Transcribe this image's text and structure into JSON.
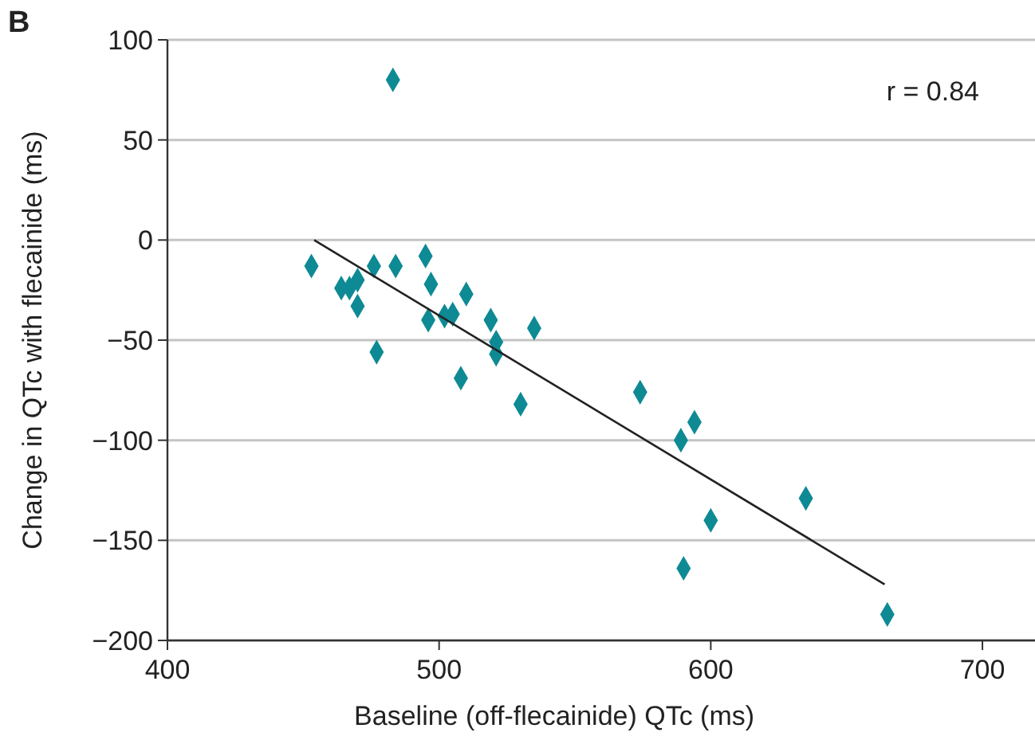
{
  "chart_data": {
    "type": "scatter",
    "title": "B",
    "xlabel": "Baseline (off-flecainide) QTc (ms)",
    "ylabel": "Change in QTc with flecainide (ms)",
    "annotations": [
      "r = 0.84"
    ],
    "xlim": [
      400,
      720
    ],
    "xticks": [
      400,
      500,
      600,
      700
    ],
    "ylim": [
      -200,
      100
    ],
    "yticks": [
      -200,
      -150,
      -100,
      -50,
      0,
      50,
      100
    ],
    "grid": "y",
    "series": [
      {
        "color": "#0e8a94",
        "marker": "diamond",
        "x": [
          483,
          453,
          464,
          467,
          470,
          470,
          476,
          484,
          495,
          497,
          505,
          510,
          502,
          496,
          519,
          521,
          521,
          535,
          477,
          508,
          530,
          574,
          594,
          589,
          600,
          590,
          635,
          665
        ],
        "values": [
          80,
          -13,
          -24,
          -24,
          -20,
          -33,
          -13,
          -13,
          -8,
          -22,
          -37,
          -27,
          -38,
          -40,
          -40,
          -51,
          -57,
          -44,
          -56,
          -69,
          -82,
          -76,
          -91,
          -100,
          -140,
          -164,
          -129,
          -187
        ]
      },
      {
        "type": "line",
        "color": "#222222",
        "x": [
          454,
          664
        ],
        "values": [
          0,
          -172
        ]
      }
    ]
  }
}
